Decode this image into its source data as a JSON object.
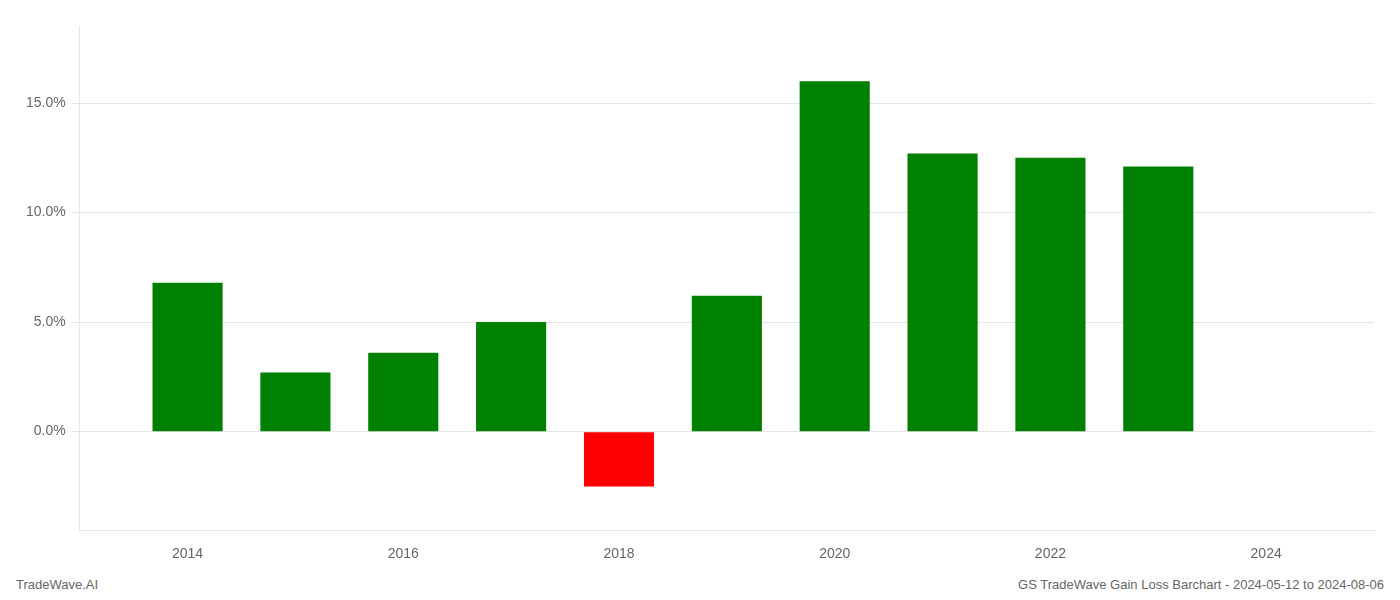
{
  "chart_data": {
    "type": "bar",
    "x": [
      2014,
      2015,
      2016,
      2017,
      2018,
      2019,
      2020,
      2021,
      2022,
      2023
    ],
    "values": [
      0.068,
      0.027,
      0.036,
      0.05,
      -0.025,
      0.062,
      0.16,
      0.127,
      0.125,
      0.121
    ],
    "colors": [
      "#008000",
      "#008000",
      "#008000",
      "#008000",
      "#ff0000",
      "#008000",
      "#008000",
      "#008000",
      "#008000",
      "#008000"
    ],
    "xlim": [
      2013.0,
      2025.0
    ],
    "xticks": [
      2014,
      2016,
      2018,
      2020,
      2022,
      2024
    ],
    "ylim": [
      -0.045,
      0.185
    ],
    "yticks": [
      {
        "value": 0.0,
        "label": "0.0%"
      },
      {
        "value": 0.05,
        "label": "5.0%"
      },
      {
        "value": 0.1,
        "label": "10.0%"
      },
      {
        "value": 0.15,
        "label": "15.0%"
      }
    ],
    "grid": "y",
    "annotations": [
      "TradeWave.AI",
      "GS TradeWave Gain Loss Barchart - 2024-05-12 to 2024-08-06"
    ]
  }
}
